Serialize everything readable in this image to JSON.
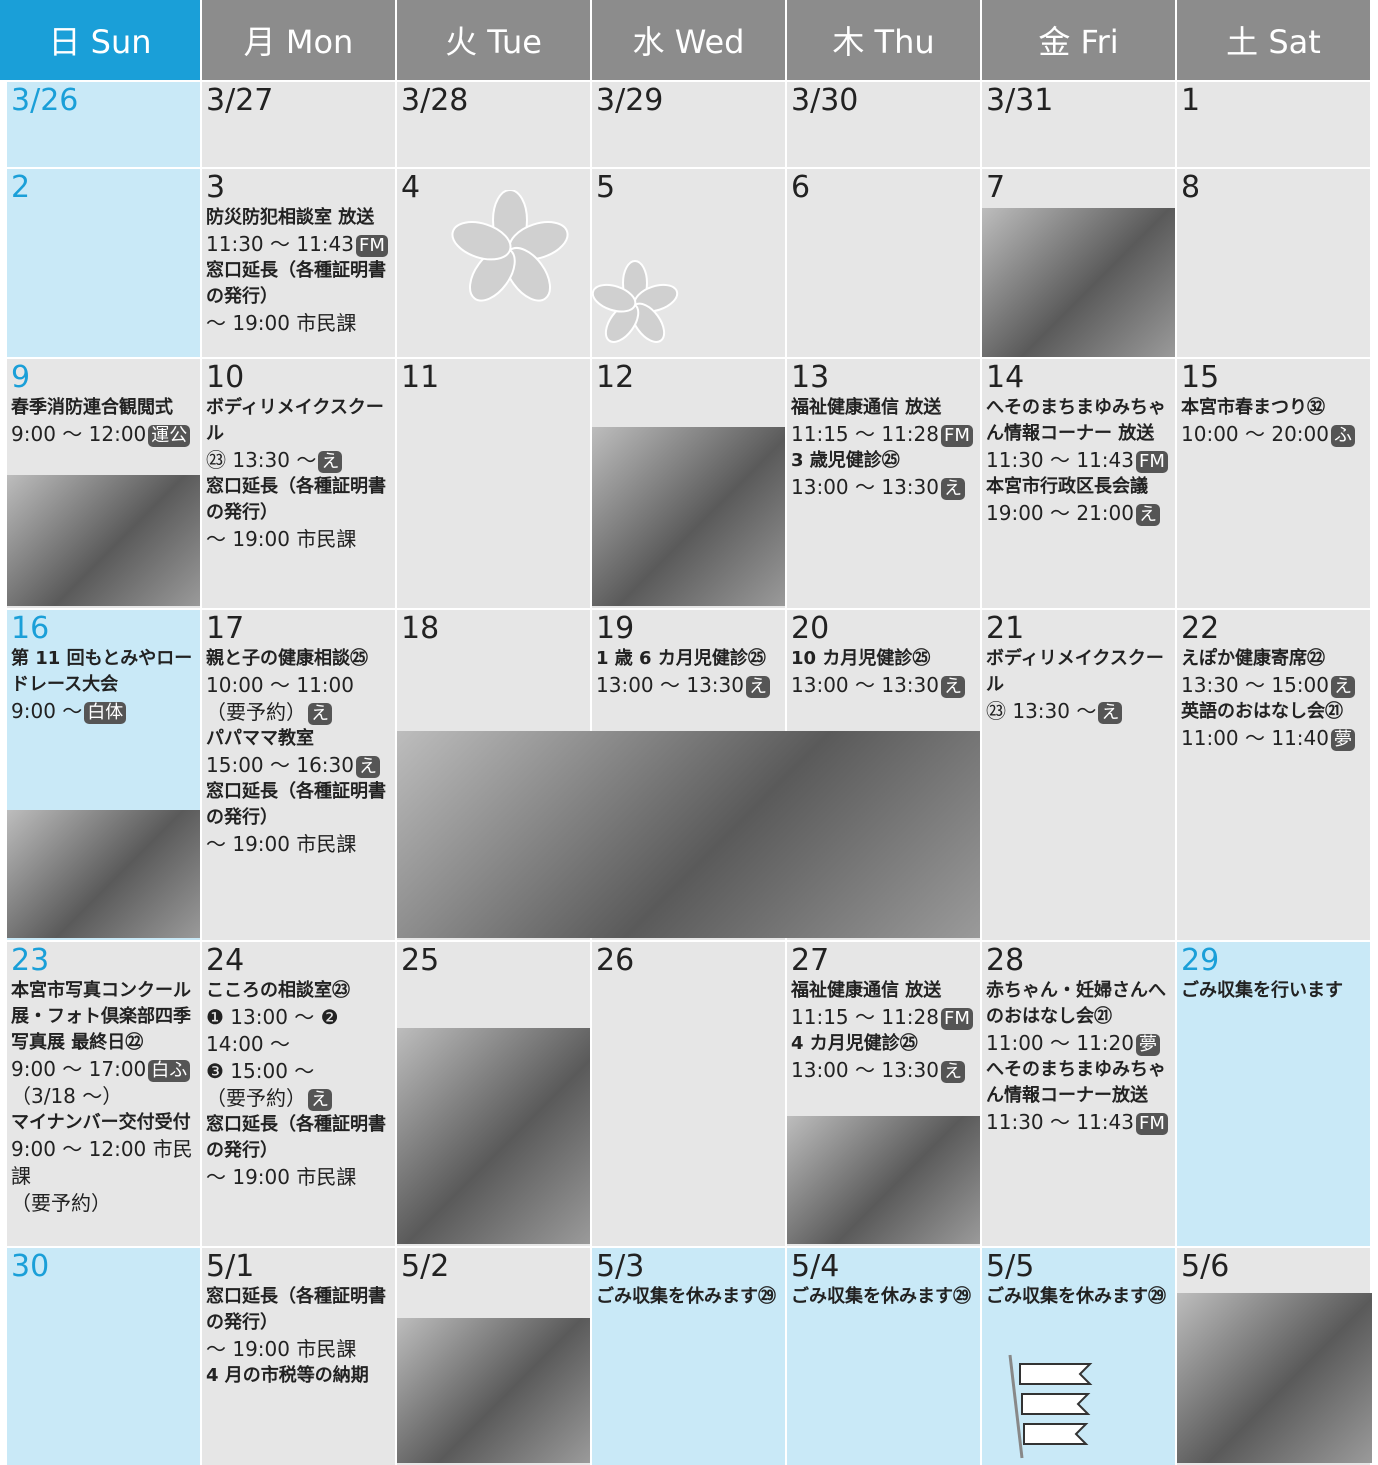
{
  "header": {
    "days": [
      "日 Sun",
      "月 Mon",
      "火 Tue",
      "水 Wed",
      "木 Thu",
      "金 Fri",
      "土 Sat"
    ]
  },
  "weeks": [
    {
      "cells": [
        {
          "date": "3/26",
          "blue_date": true,
          "blue_bg": true
        },
        {
          "date": "3/27"
        },
        {
          "date": "3/28"
        },
        {
          "date": "3/29"
        },
        {
          "date": "3/30"
        },
        {
          "date": "3/31"
        },
        {
          "date": "1"
        }
      ]
    },
    {
      "cells": [
        {
          "date": "2",
          "blue_date": true,
          "blue_bg": true
        },
        {
          "date": "3",
          "lines": [
            {
              "t": "防災防犯相談室 放送",
              "b": true
            },
            {
              "t": "11:30 ～ 11:43",
              "tag": "FM"
            },
            {
              "t": "窓口延長（各種証明書の発行）",
              "b": true
            },
            {
              "t": "～ 19:00 市民課"
            }
          ]
        },
        {
          "date": "4"
        },
        {
          "date": "5"
        },
        {
          "date": "6"
        },
        {
          "date": "7"
        },
        {
          "date": "8"
        }
      ]
    },
    {
      "cells": [
        {
          "date": "9",
          "blue_date": true,
          "lines": [
            {
              "t": "春季消防連合観閲式",
              "b": true
            },
            {
              "t": "9:00 ～ 12:00",
              "tag": "運公"
            }
          ]
        },
        {
          "date": "10",
          "lines": [
            {
              "t": "ボディリメイクスクール",
              "b": true
            },
            {
              "t": "㉓ 13:30 ～",
              "tag": "え"
            },
            {
              "t": "窓口延長（各種証明書の発行）",
              "b": true
            },
            {
              "t": "～ 19:00 市民課"
            }
          ]
        },
        {
          "date": "11"
        },
        {
          "date": "12"
        },
        {
          "date": "13",
          "lines": [
            {
              "t": "福祉健康通信 放送",
              "b": true
            },
            {
              "t": "11:15 ～ 11:28",
              "tag": "FM"
            },
            {
              "t": "3 歳児健診㉕",
              "b": true
            },
            {
              "t": "13:00 ～ 13:30",
              "tag": "え"
            }
          ]
        },
        {
          "date": "14",
          "lines": [
            {
              "t": "へそのまちまゆみちゃん情報コーナー 放送",
              "b": true
            },
            {
              "t": "11:30 ～ 11:43",
              "tag": "FM"
            },
            {
              "t": "本宮市行政区長会議",
              "b": true
            },
            {
              "t": "19:00 ～ 21:00",
              "tag": "え"
            }
          ]
        },
        {
          "date": "15",
          "lines": [
            {
              "t": "本宮市春まつり㉜",
              "b": true
            },
            {
              "t": "10:00 ～ 20:00",
              "tag": "ふ"
            }
          ]
        }
      ]
    },
    {
      "cells": [
        {
          "date": "16",
          "blue_date": true,
          "blue_bg": true,
          "lines": [
            {
              "t": "第 11 回もとみやロードレース大会",
              "b": true
            },
            {
              "t": "9:00 ～",
              "tag": "白体"
            }
          ]
        },
        {
          "date": "17",
          "lines": [
            {
              "t": "親と子の健康相談㉕",
              "b": true
            },
            {
              "t": "10:00 ～ 11:00"
            },
            {
              "t": "（要予約）",
              "tag": "え"
            },
            {
              "t": "パパママ教室",
              "b": true
            },
            {
              "t": "15:00 ～ 16:30",
              "tag": "え"
            },
            {
              "t": "窓口延長（各種証明書の発行）",
              "b": true
            },
            {
              "t": "～ 19:00 市民課"
            }
          ]
        },
        {
          "date": "18"
        },
        {
          "date": "19",
          "lines": [
            {
              "t": "1 歳 6 カ月児健診㉕",
              "b": true
            },
            {
              "t": "13:00 ～ 13:30",
              "tag": "え"
            }
          ]
        },
        {
          "date": "20",
          "lines": [
            {
              "t": "10 カ月児健診㉕",
              "b": true
            },
            {
              "t": "13:00 ～ 13:30",
              "tag": "え"
            }
          ]
        },
        {
          "date": "21",
          "lines": [
            {
              "t": "ボディリメイクスクール",
              "b": true
            },
            {
              "t": "㉓ 13:30 ～",
              "tag": "え"
            }
          ]
        },
        {
          "date": "22",
          "lines": [
            {
              "t": "えぽか健康寄席㉒",
              "b": true
            },
            {
              "t": "13:30 ～ 15:00",
              "tag": "え"
            },
            {
              "t": "英語のおはなし会㉑",
              "b": true
            },
            {
              "t": "11:00 ～ 11:40",
              "tag": "夢"
            }
          ]
        }
      ]
    },
    {
      "cells": [
        {
          "date": "23",
          "blue_date": true,
          "lines": [
            {
              "t": "本宮市写真コンクール展・フォト倶楽部四季写真展 最終日㉒",
              "b": true
            },
            {
              "t": "9:00 ～ 17:00",
              "tag": "白ふ"
            },
            {
              "t": "（3/18 ～）"
            },
            {
              "t": "マイナンバー交付受付",
              "b": true
            },
            {
              "t": "9:00 ～ 12:00 市民課"
            },
            {
              "t": "（要予約）"
            }
          ]
        },
        {
          "date": "24",
          "lines": [
            {
              "t": "こころの相談室㉓",
              "b": true
            },
            {
              "t": "❶ 13:00 ～ ❷ 14:00 ～"
            },
            {
              "t": "❸ 15:00 ～"
            },
            {
              "t": "（要予約）",
              "tag": "え"
            },
            {
              "t": "窓口延長（各種証明書の発行）",
              "b": true
            },
            {
              "t": "～ 19:00 市民課"
            }
          ]
        },
        {
          "date": "25"
        },
        {
          "date": "26"
        },
        {
          "date": "27",
          "lines": [
            {
              "t": "福祉健康通信 放送",
              "b": true
            },
            {
              "t": "11:15 ～ 11:28",
              "tag": "FM"
            },
            {
              "t": "4 カ月児健診㉕",
              "b": true
            },
            {
              "t": "13:00 ～ 13:30",
              "tag": "え"
            }
          ]
        },
        {
          "date": "28",
          "lines": [
            {
              "t": "赤ちゃん・妊婦さんへのおはなし会㉑",
              "b": true
            },
            {
              "t": "11:00 ～ 11:20",
              "tag": "夢"
            },
            {
              "t": "へそのまちまゆみちゃん情報コーナー放送",
              "b": true
            },
            {
              "t": "11:30 ～ 11:43",
              "tag": "FM"
            }
          ]
        },
        {
          "date": "29",
          "blue_date": true,
          "blue_bg": true,
          "lines": [
            {
              "t": "ごみ収集を行います",
              "b": true
            }
          ]
        }
      ]
    },
    {
      "cells": [
        {
          "date": "30",
          "blue_date": true,
          "blue_bg": true
        },
        {
          "date": "5/1",
          "lines": [
            {
              "t": "窓口延長（各種証明書の発行）",
              "b": true
            },
            {
              "t": "～ 19:00 市民課"
            },
            {
              "t": "4 月の市税等の納期",
              "b": true
            }
          ]
        },
        {
          "date": "5/2"
        },
        {
          "date": "5/3",
          "blue_bg": true,
          "lines": [
            {
              "t": "ごみ収集を休みます㉙",
              "b": true
            }
          ]
        },
        {
          "date": "5/4",
          "blue_bg": true,
          "lines": [
            {
              "t": "ごみ収集を休みます㉙",
              "b": true
            }
          ]
        },
        {
          "date": "5/5",
          "blue_bg": true,
          "lines": [
            {
              "t": "ごみ収集を休みます㉙",
              "b": true
            }
          ]
        },
        {
          "date": "5/6"
        }
      ]
    }
  ]
}
